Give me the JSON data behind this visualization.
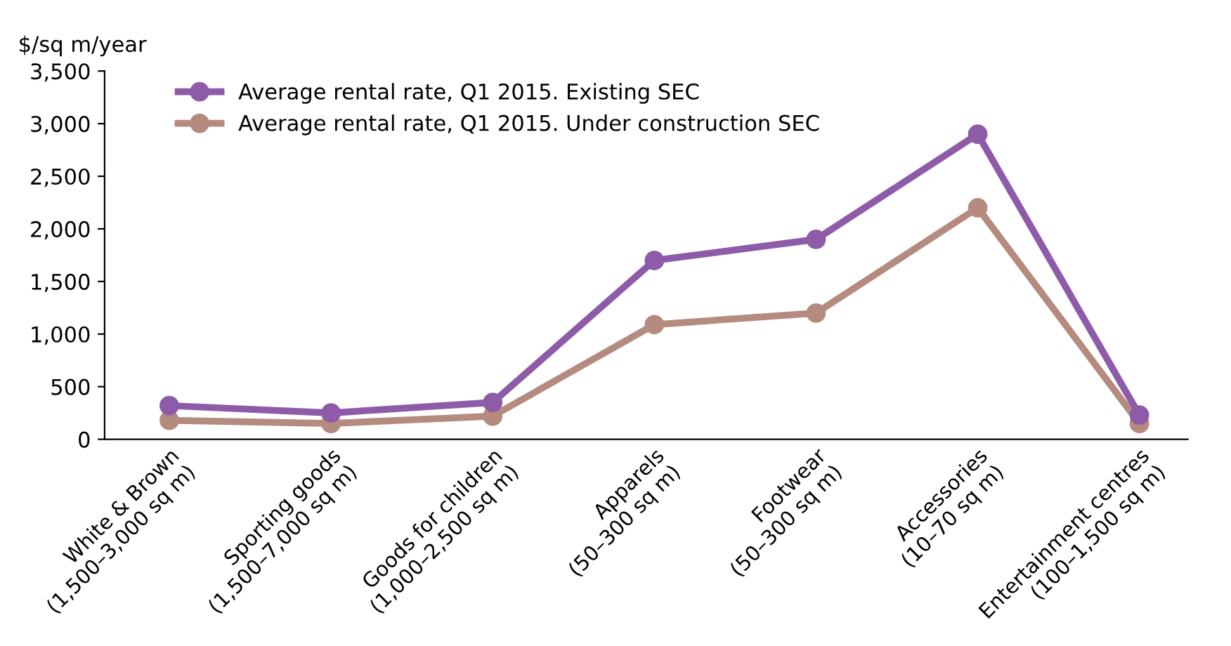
{
  "chart_data": {
    "type": "line",
    "ylabel": "$/sq m/year",
    "categories": [
      "White & Brown\n(1,500–3,000 sq m)",
      "Sporting goods\n(1,500–7,000 sq m)",
      "Goods for children\n(1,000–2,500 sq m)",
      "Apparels\n(50–300 sq m)",
      "Footwear\n(50–300 sq m)",
      "Accessories\n(10–70 sq m)",
      "Entertainment centres\n(100–1,500 sq m)"
    ],
    "series": [
      {
        "name": "Average rental rate, Q1 2015. Existing SEC",
        "color": "#8e5ba8",
        "values": [
          320,
          250,
          350,
          1700,
          1900,
          2900,
          230
        ]
      },
      {
        "name": "Average rental rate, Q1 2015. Under construction SEC",
        "color": "#b58b80",
        "values": [
          180,
          150,
          220,
          1090,
          1200,
          2200,
          150
        ]
      }
    ],
    "ylim": [
      0,
      3500
    ],
    "yticks": [
      {
        "value": 0,
        "label": "0"
      },
      {
        "value": 500,
        "label": "500"
      },
      {
        "value": 1000,
        "label": "1,000"
      },
      {
        "value": 1500,
        "label": "1,500"
      },
      {
        "value": 2000,
        "label": "2,000"
      },
      {
        "value": 2500,
        "label": "2,500"
      },
      {
        "value": 3000,
        "label": "3,000"
      },
      {
        "value": 3500,
        "label": "3,500"
      }
    ],
    "marker": "circle",
    "line_style": "solid",
    "grid": false,
    "legend": "top left"
  }
}
